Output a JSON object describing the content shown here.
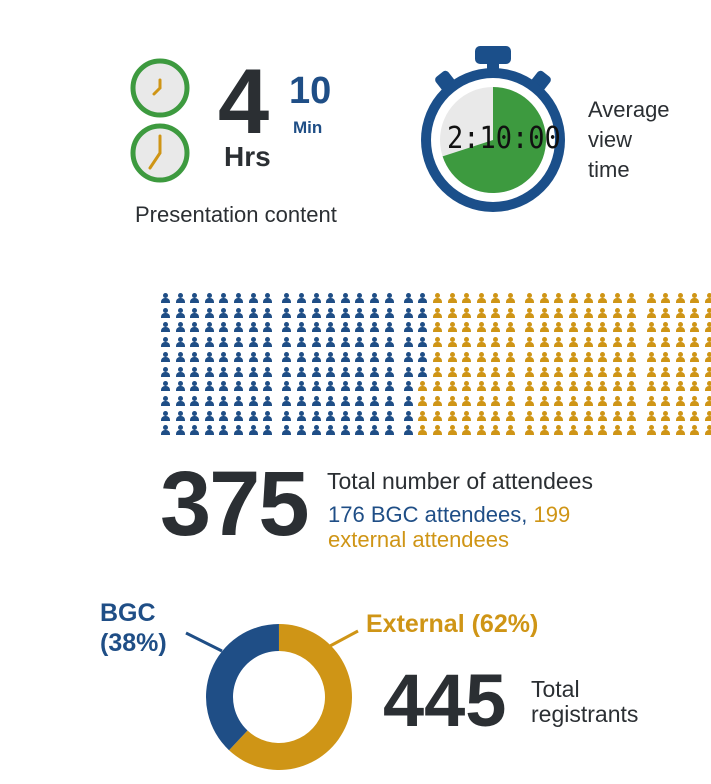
{
  "presentation": {
    "hours_value": "4",
    "hours_unit": "Hrs",
    "minutes_value": "10",
    "minutes_unit": "Min",
    "label": "Presentation content"
  },
  "view_time": {
    "time_display": "2:10:00",
    "label_line1": "Average",
    "label_line2": "view",
    "label_line3": "time",
    "stopwatch_fill_fraction": 0.7
  },
  "attendees": {
    "total": "375",
    "total_label": "Total number of attendees",
    "bgc_text": "176 BGC attendees,",
    "external_text_part1": "199",
    "external_text_part2": "external attendees",
    "bgc_count": 176,
    "external_count": 199
  },
  "registrants": {
    "bgc_label_line1": "BGC",
    "bgc_label_line2": "(38%)",
    "external_label": "External (62%)",
    "total": "445",
    "total_label_line1": "Total",
    "total_label_line2": "registrants",
    "bgc_fraction": 0.38,
    "external_fraction": 0.62
  },
  "colors": {
    "bgc_blue": "#1f4e86",
    "external_gold": "#cf9516",
    "clock_green": "#3d9a3f",
    "dark_text": "#2b2f33",
    "stopwatch_navy": "#1b4f8a",
    "face_gray": "#e9e9e9"
  }
}
